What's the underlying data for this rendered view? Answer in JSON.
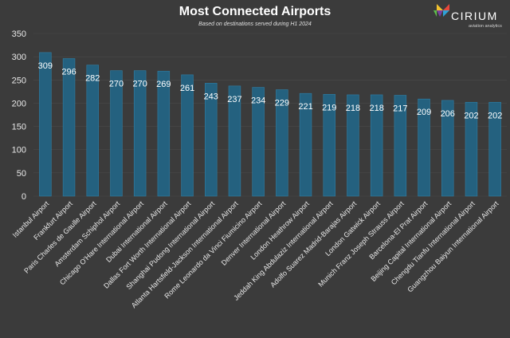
{
  "brand": {
    "name": "CIRIUM",
    "tagline": "aviation analytics",
    "logo_icon": "cirium-logo-icon"
  },
  "colors": {
    "background": "#3b3b3b",
    "bar": "#24617f",
    "bar_edge": "#2f7fa6",
    "text": "#e8e8e8",
    "grid": "#4a4a4a"
  },
  "chart_data": {
    "type": "bar",
    "title": "Most Connected Airports",
    "subtitle": "Based on destinations served during H1 2024",
    "xlabel": "",
    "ylabel": "",
    "ylim": [
      0,
      350
    ],
    "yticks": [
      0,
      50,
      100,
      150,
      200,
      250,
      300,
      350
    ],
    "categories": [
      "Istanbul Airport",
      "Frankfurt Airport",
      "Paris Charles de Gaulle Airport",
      "Amsterdam Schiphol Airport",
      "Chicago O'Hare International Airport",
      "Dubai International Airport",
      "Dallas Fort Worth International Airport",
      "Shanghai Pudong International Airport",
      "Atlanta Hartsfield-Jackson International Airport",
      "Rome Leonardo da Vinci Fiumicino Airport",
      "Denver International Airport",
      "London Heathrow Airport",
      "Jeddah King Abdulaziz International Airport",
      "Adolfo Suarez Madrid-Barajas Airport",
      "London Gatwick Airport",
      "Munich Franz Joseph Strauss Airport",
      "Barcelona-El Prat Airport",
      "Beijing Capital International Airport",
      "Chengdu Tianfu International Airport",
      "Guangzhou Baiyun International Airport"
    ],
    "values": [
      309,
      296,
      282,
      270,
      270,
      269,
      261,
      243,
      237,
      234,
      229,
      221,
      219,
      218,
      218,
      217,
      209,
      206,
      202,
      202
    ],
    "data_labels": true,
    "legend": "none"
  }
}
